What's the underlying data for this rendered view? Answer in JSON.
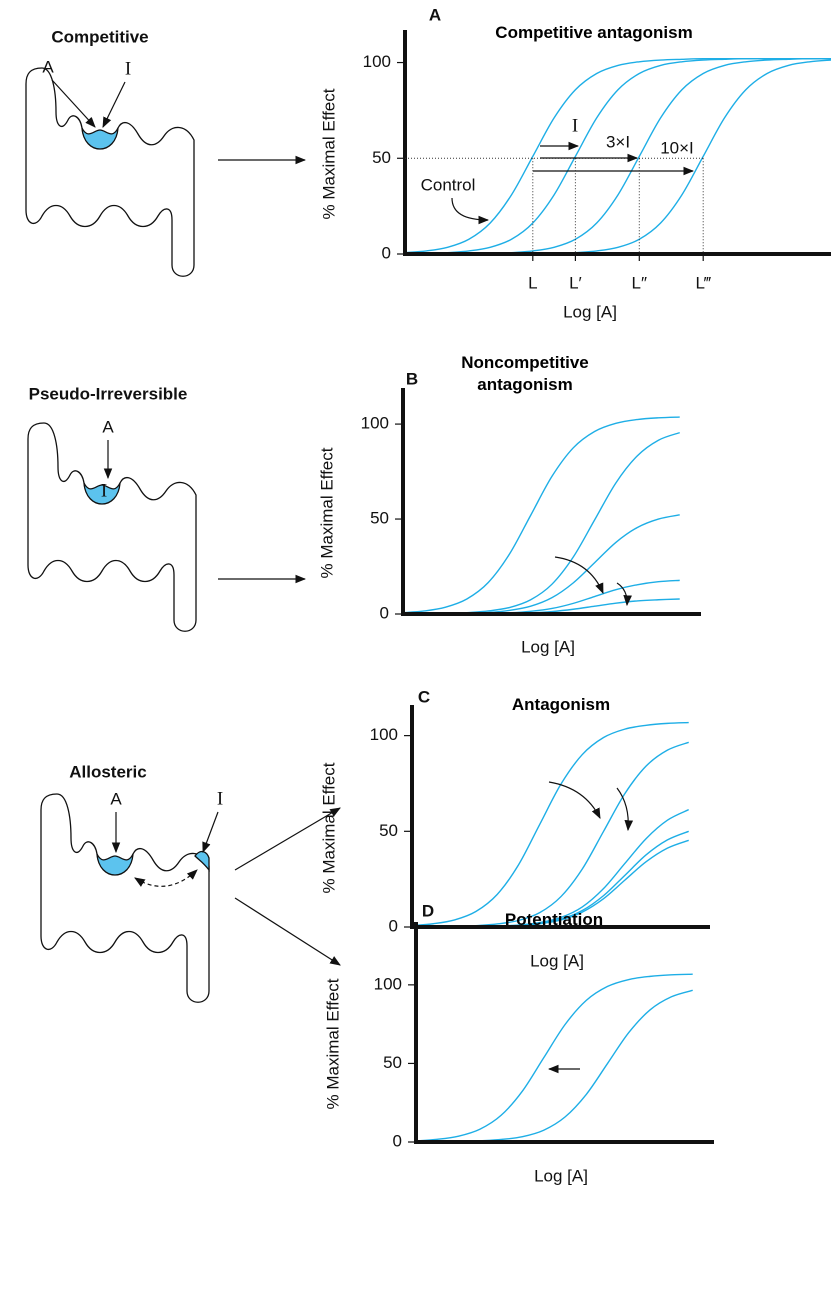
{
  "diagrams": [
    {
      "title": "Competitive",
      "labels": [
        "A",
        "I"
      ]
    },
    {
      "title": "Pseudo-Irreversible",
      "labels": [
        "A",
        "I"
      ]
    },
    {
      "title": "Allosteric",
      "labels": [
        "A",
        "I"
      ]
    }
  ],
  "chart_data": [
    {
      "type": "line",
      "panel": "A",
      "title": "Competitive antagonism",
      "ylabel": "% Maximal Effect",
      "xlabel": "Log [A]",
      "x": [
        0,
        0.5,
        1,
        1.5,
        2,
        2.5,
        3,
        3.5,
        4,
        4.5,
        5,
        5.5,
        6,
        6.5,
        7,
        7.5,
        8,
        8.5,
        9,
        9.5,
        10
      ],
      "xlim": [
        0,
        10
      ],
      "ylim": [
        0,
        117
      ],
      "yticks": [
        0,
        50,
        100
      ],
      "xticks": [
        {
          "value": 3,
          "label": "L"
        },
        {
          "value": 4,
          "label": "L′"
        },
        {
          "value": 5.5,
          "label": "L″"
        },
        {
          "value": 7,
          "label": "L‴"
        }
      ],
      "annotations": [
        "Control",
        "I",
        "3×I",
        "10×I"
      ],
      "series": [
        {
          "color": "#1eaee6",
          "values": [
            0.7,
            1.6,
            3.5,
            7.7,
            16.2,
            30.9,
            51,
            71.1,
            85.8,
            94.3,
            98.5,
            100.4,
            101.3,
            101.7,
            102,
            102,
            102,
            102,
            102,
            102,
            102
          ]
        },
        {
          "color": "#1eaee6",
          "values": [
            0,
            0,
            0.7,
            1.6,
            3.5,
            7.7,
            16.2,
            30.9,
            51,
            71.1,
            85.8,
            94.3,
            98.5,
            100.4,
            101.3,
            101.7,
            102,
            102,
            102,
            102,
            102
          ]
        },
        {
          "color": "#1eaee6",
          "values": [
            0,
            0,
            0,
            0,
            0,
            0.7,
            1.6,
            3.5,
            7.7,
            16.2,
            30.9,
            51,
            71.1,
            85.8,
            94.3,
            98.5,
            100.4,
            101.3,
            101.7,
            102,
            102
          ]
        },
        {
          "color": "#1eaee6",
          "values": [
            0,
            0,
            0,
            0,
            0,
            0,
            0,
            0,
            0.7,
            1.6,
            3.5,
            7.7,
            16.2,
            30.9,
            51,
            71.1,
            85.8,
            94.3,
            98.5,
            100.4,
            101.3
          ]
        }
      ]
    },
    {
      "type": "line",
      "panel": "B",
      "title": "Noncompetitive antagonism",
      "ylabel": "% Maximal Effect",
      "xlabel": "Log [A]",
      "x": [
        0,
        0.5,
        1,
        1.5,
        2,
        2.5,
        3,
        3.5,
        4,
        4.5,
        5,
        5.5,
        6,
        6.5
      ],
      "xlim": [
        0,
        7
      ],
      "ylim": [
        0,
        119
      ],
      "yticks": [
        0,
        50,
        100
      ],
      "series": [
        {
          "color": "#1eaee6",
          "values": [
            0.7,
            1.6,
            3.6,
            7.9,
            16.5,
            31.5,
            52,
            72.5,
            87.5,
            96.1,
            100.4,
            102.4,
            103.3,
            103.7
          ]
        },
        {
          "color": "#1eaee6",
          "values": [
            0,
            0,
            0,
            0.7,
            1.6,
            3.4,
            7.5,
            15.7,
            30,
            49.5,
            69,
            83.2,
            91.5,
            95.5
          ]
        },
        {
          "color": "#1eaee6",
          "values": [
            0,
            0,
            0,
            0.4,
            0.8,
            1.9,
            4.1,
            8.6,
            16.4,
            27,
            37.7,
            45.5,
            50,
            52.2
          ]
        },
        {
          "color": "#1eaee6",
          "values": [
            0,
            0,
            0,
            0.1,
            0.3,
            0.6,
            1.4,
            2.9,
            5.6,
            9.2,
            12.8,
            15.4,
            17,
            17.7
          ]
        },
        {
          "color": "#1eaee6",
          "values": [
            0,
            0,
            0,
            0,
            0.1,
            0.3,
            0.6,
            1.3,
            2.5,
            4.1,
            5.7,
            6.9,
            7.5,
            7.9
          ]
        }
      ]
    },
    {
      "type": "line",
      "panel": "C",
      "title": "Antagonism",
      "ylabel": "% Maximal Effect",
      "xlabel": "Log [A]",
      "x": [
        0,
        0.5,
        1,
        1.5,
        2,
        2.5,
        3,
        3.5,
        4,
        4.5,
        5,
        5.5,
        6,
        6.5
      ],
      "xlim": [
        0,
        7
      ],
      "ylim": [
        0,
        116
      ],
      "yticks": [
        0,
        50,
        100
      ],
      "series": [
        {
          "color": "#1eaee6",
          "values": [
            0.7,
            1.7,
            3.7,
            8.1,
            17,
            32.4,
            53.6,
            74.7,
            90.1,
            99,
            103.4,
            105.4,
            106.4,
            106.8
          ]
        },
        {
          "color": "#1eaee6",
          "values": [
            0,
            0,
            0,
            0.7,
            1.6,
            3.4,
            7.5,
            15.9,
            30.3,
            50,
            69.7,
            84.1,
            92.4,
            96.5
          ]
        },
        {
          "color": "#1eaee6",
          "values": [
            0,
            0,
            0,
            0,
            0.5,
            1,
            2.3,
            5,
            10.5,
            20.1,
            33.2,
            46.2,
            55.8,
            61.3
          ]
        },
        {
          "color": "#1eaee6",
          "values": [
            0,
            0,
            0,
            0,
            0.4,
            0.8,
            1.9,
            4.1,
            8.6,
            16.4,
            27,
            37.7,
            45.5,
            50
          ]
        },
        {
          "color": "#1eaee6",
          "values": [
            0,
            0,
            0,
            0,
            0.3,
            0.8,
            1.7,
            3.7,
            7.8,
            14.8,
            24.5,
            34.1,
            41.2,
            45.3
          ]
        }
      ]
    },
    {
      "type": "line",
      "panel": "D",
      "title": "Potentiation",
      "ylabel": "% Maximal Effect",
      "xlabel": "Log [A]",
      "x": [
        0,
        0.5,
        1,
        1.5,
        2,
        2.5,
        3,
        3.5,
        4,
        4.5,
        5,
        5.5,
        6,
        6.5
      ],
      "xlim": [
        0,
        7
      ],
      "ylim": [
        0,
        140
      ],
      "yticks": [
        0,
        50,
        100
      ],
      "series": [
        {
          "color": "#1eaee6",
          "values": [
            0.7,
            1.7,
            3.7,
            8.1,
            17,
            32.4,
            53.6,
            74.7,
            90.1,
            99,
            103.4,
            105.4,
            106.4,
            106.8
          ]
        },
        {
          "color": "#1eaee6",
          "values": [
            0,
            0,
            0,
            0.7,
            1.6,
            3.4,
            7.5,
            15.9,
            30.3,
            50,
            69.7,
            84.1,
            92.4,
            96.5
          ]
        }
      ]
    }
  ]
}
